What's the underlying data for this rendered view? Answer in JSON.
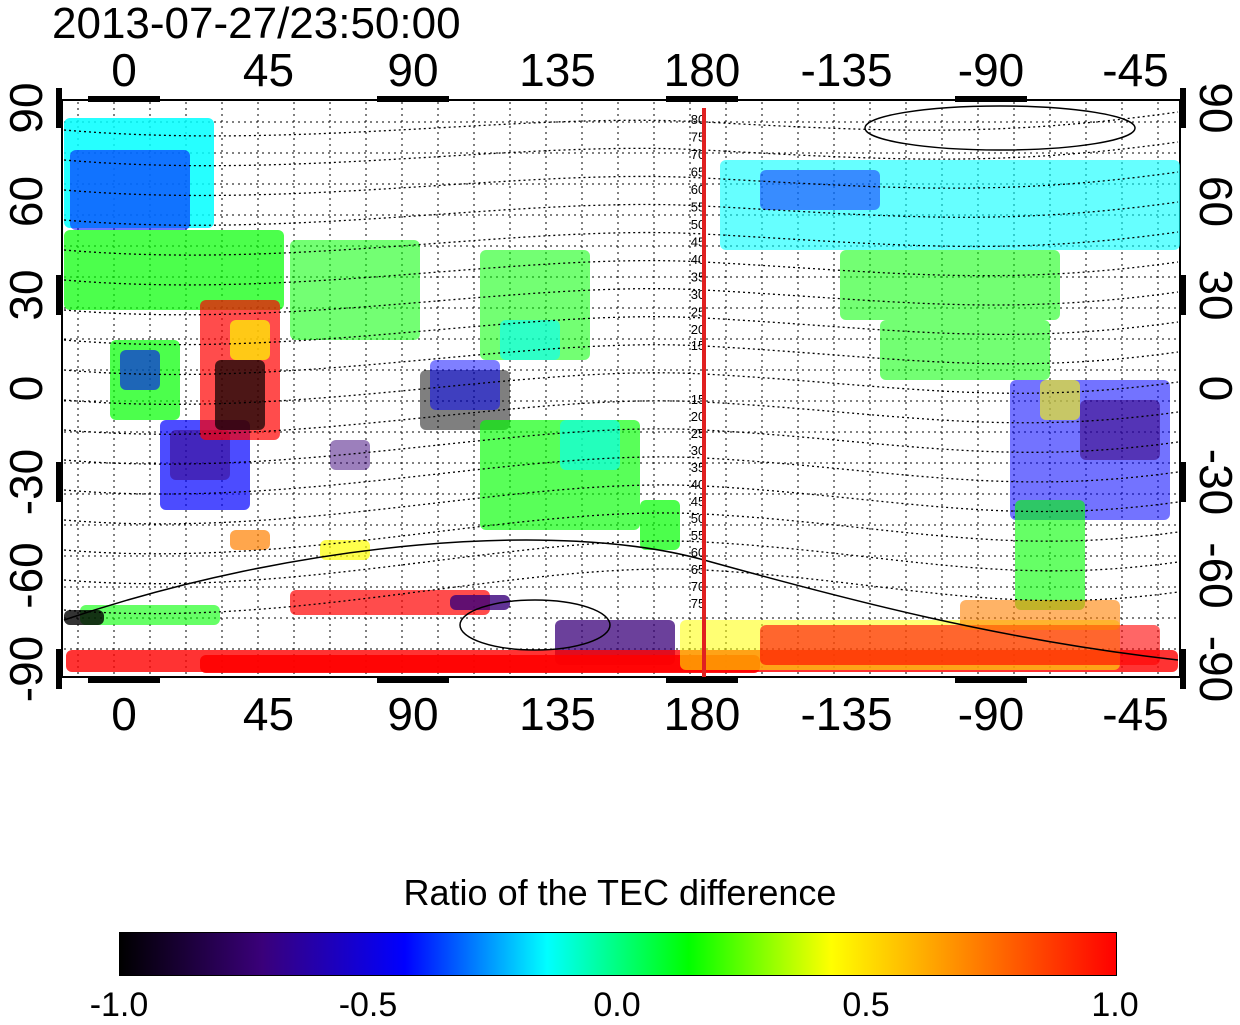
{
  "title": "2013-07-27/23:50:00",
  "map": {
    "lon_ticks_bottom": [
      "0",
      "45",
      "90",
      "135",
      "180",
      "-135",
      "-90",
      "-45"
    ],
    "lon_ticks_top": [
      "0",
      "45",
      "90",
      "135",
      "180",
      "-135",
      "-90",
      "-45"
    ],
    "lat_ticks_left": [
      "90",
      "60",
      "30",
      "0",
      "-30",
      "-60",
      "-90"
    ],
    "lat_ticks_right": [
      "90",
      "60",
      "30",
      "0",
      "-30",
      "-60",
      "-90"
    ],
    "contour_labels": [
      "80",
      "75",
      "70",
      "65",
      "60",
      "55",
      "50",
      "45",
      "40",
      "35",
      "30",
      "25",
      "20",
      "15",
      "15",
      "20",
      "25",
      "30",
      "35",
      "40",
      "45",
      "50",
      "55",
      "60",
      "65",
      "70",
      "75"
    ],
    "meridian_line_lon": 180,
    "meridian_color": "#e02020"
  },
  "colorbar": {
    "title": "Ratio of the TEC difference",
    "tick_labels": [
      "-1.0",
      "-0.5",
      "0.0",
      "0.5",
      "1.0"
    ],
    "range": [
      -1.0,
      1.0
    ],
    "colors": [
      "#000000",
      "#3a007a",
      "#0000ff",
      "#00ffff",
      "#00ff00",
      "#ffff00",
      "#ff8000",
      "#ff0000"
    ]
  }
}
